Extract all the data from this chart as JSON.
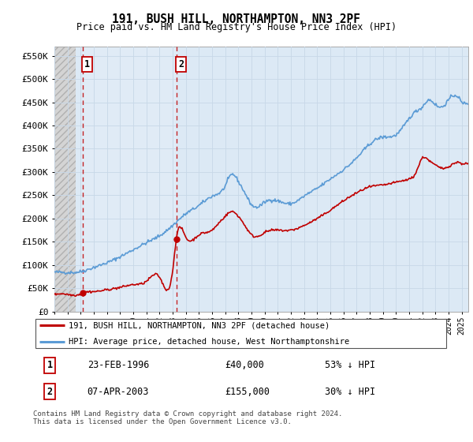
{
  "title": "191, BUSH HILL, NORTHAMPTON, NN3 2PF",
  "subtitle": "Price paid vs. HM Land Registry's House Price Index (HPI)",
  "ylabel_ticks": [
    "£0",
    "£50K",
    "£100K",
    "£150K",
    "£200K",
    "£250K",
    "£300K",
    "£350K",
    "£400K",
    "£450K",
    "£500K",
    "£550K"
  ],
  "ytick_values": [
    0,
    50000,
    100000,
    150000,
    200000,
    250000,
    300000,
    350000,
    400000,
    450000,
    500000,
    550000
  ],
  "xlim": [
    1994.0,
    2025.5
  ],
  "ylim": [
    0,
    570000
  ],
  "sale1_x": 1996.15,
  "sale1_y": 40000,
  "sale1_label": "1",
  "sale2_x": 2003.27,
  "sale2_y": 155000,
  "sale2_label": "2",
  "hpi_color": "#5b9bd5",
  "price_color": "#c00000",
  "legend_line1": "191, BUSH HILL, NORTHAMPTON, NN3 2PF (detached house)",
  "legend_line2": "HPI: Average price, detached house, West Northamptonshire",
  "table_row1": [
    "1",
    "23-FEB-1996",
    "£40,000",
    "53% ↓ HPI"
  ],
  "table_row2": [
    "2",
    "07-APR-2003",
    "£155,000",
    "30% ↓ HPI"
  ],
  "footnote": "Contains HM Land Registry data © Crown copyright and database right 2024.\nThis data is licensed under the Open Government Licence v3.0.",
  "plot_bg": "#dce9f5",
  "plot_bg_between": "#e8f1fa",
  "hatch_bg": "#d8d8d8",
  "grid_color": "#c8d8e8"
}
